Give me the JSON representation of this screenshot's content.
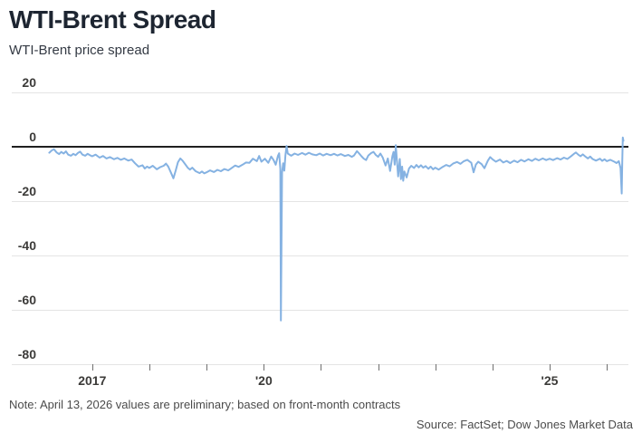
{
  "header": {
    "title": "WTI-Brent Spread",
    "subtitle": "WTI-Brent price spread"
  },
  "footer": {
    "note": "Note: April 13, 2026 values are preliminary; based on front-month contracts",
    "source": "Source: FactSet; Dow Jones Market Data"
  },
  "colors": {
    "line": "#85b2e2",
    "zero_line": "#1f1f1f",
    "gridline": "#e4e4e4",
    "tick_mark": "#6f6f6f",
    "axis_label": "#3c3b39",
    "title": "#1d2531",
    "footnote": "#4b4b4b"
  },
  "chart_data": {
    "type": "line",
    "title": "WTI-Brent Spread",
    "subtitle": "WTI-Brent price spread",
    "xlabel": "",
    "ylabel": "",
    "ylim": [
      -80,
      20
    ],
    "xlim": [
      2016.25,
      2026.35
    ],
    "grid": "horizontal",
    "legend": "none",
    "yticks": [
      20,
      0,
      -20,
      -40,
      -60,
      -80
    ],
    "xticks": [
      {
        "value": 2017,
        "label": "2017"
      },
      {
        "value": 2018,
        "label": ""
      },
      {
        "value": 2019,
        "label": ""
      },
      {
        "value": 2020,
        "label": "'20"
      },
      {
        "value": 2021,
        "label": ""
      },
      {
        "value": 2022,
        "label": ""
      },
      {
        "value": 2023,
        "label": ""
      },
      {
        "value": 2024,
        "label": ""
      },
      {
        "value": 2025,
        "label": "'25"
      },
      {
        "value": 2026,
        "label": ""
      }
    ],
    "series": [
      {
        "name": "WTI-Brent price spread",
        "points": [
          [
            2016.25,
            -2.2
          ],
          [
            2016.29,
            -1.4
          ],
          [
            2016.33,
            -0.9
          ],
          [
            2016.38,
            -2.1
          ],
          [
            2016.42,
            -2.7
          ],
          [
            2016.46,
            -1.9
          ],
          [
            2016.5,
            -2.5
          ],
          [
            2016.54,
            -1.7
          ],
          [
            2016.58,
            -2.9
          ],
          [
            2016.63,
            -3.3
          ],
          [
            2016.67,
            -2.6
          ],
          [
            2016.71,
            -3.1
          ],
          [
            2016.75,
            -2.3
          ],
          [
            2016.79,
            -1.8
          ],
          [
            2016.83,
            -2.9
          ],
          [
            2016.88,
            -3.3
          ],
          [
            2016.92,
            -2.6
          ],
          [
            2016.96,
            -3.1
          ],
          [
            2017.0,
            -3.5
          ],
          [
            2017.06,
            -2.9
          ],
          [
            2017.13,
            -4.0
          ],
          [
            2017.19,
            -3.4
          ],
          [
            2017.25,
            -4.3
          ],
          [
            2017.31,
            -3.8
          ],
          [
            2017.38,
            -4.6
          ],
          [
            2017.44,
            -4.1
          ],
          [
            2017.5,
            -4.8
          ],
          [
            2017.56,
            -4.3
          ],
          [
            2017.63,
            -5.1
          ],
          [
            2017.69,
            -4.7
          ],
          [
            2017.75,
            -6.1
          ],
          [
            2017.81,
            -7.3
          ],
          [
            2017.88,
            -6.8
          ],
          [
            2017.92,
            -8.0
          ],
          [
            2017.96,
            -7.3
          ],
          [
            2018.0,
            -7.8
          ],
          [
            2018.06,
            -7.0
          ],
          [
            2018.13,
            -8.3
          ],
          [
            2018.19,
            -7.5
          ],
          [
            2018.25,
            -7.0
          ],
          [
            2018.29,
            -6.2
          ],
          [
            2018.33,
            -7.3
          ],
          [
            2018.38,
            -9.6
          ],
          [
            2018.42,
            -11.6
          ],
          [
            2018.46,
            -8.8
          ],
          [
            2018.5,
            -5.7
          ],
          [
            2018.54,
            -4.3
          ],
          [
            2018.58,
            -5.1
          ],
          [
            2018.63,
            -6.5
          ],
          [
            2018.67,
            -7.7
          ],
          [
            2018.71,
            -8.4
          ],
          [
            2018.75,
            -7.7
          ],
          [
            2018.81,
            -9.0
          ],
          [
            2018.88,
            -9.7
          ],
          [
            2018.92,
            -9.1
          ],
          [
            2018.96,
            -9.8
          ],
          [
            2019.0,
            -9.4
          ],
          [
            2019.06,
            -8.7
          ],
          [
            2019.13,
            -9.3
          ],
          [
            2019.19,
            -8.5
          ],
          [
            2019.25,
            -9.0
          ],
          [
            2019.31,
            -8.2
          ],
          [
            2019.38,
            -8.7
          ],
          [
            2019.44,
            -7.8
          ],
          [
            2019.5,
            -6.9
          ],
          [
            2019.56,
            -7.4
          ],
          [
            2019.63,
            -6.6
          ],
          [
            2019.69,
            -5.8
          ],
          [
            2019.75,
            -5.9
          ],
          [
            2019.81,
            -4.4
          ],
          [
            2019.88,
            -5.3
          ],
          [
            2019.92,
            -3.4
          ],
          [
            2019.96,
            -5.5
          ],
          [
            2020.02,
            -4.4
          ],
          [
            2020.08,
            -5.9
          ],
          [
            2020.13,
            -3.6
          ],
          [
            2020.17,
            -4.8
          ],
          [
            2020.21,
            -6.6
          ],
          [
            2020.25,
            -3.3
          ],
          [
            2020.27,
            -2.4
          ],
          [
            2020.29,
            -8.2
          ],
          [
            2020.3,
            -63.9
          ],
          [
            2020.32,
            -9.6
          ],
          [
            2020.34,
            -6.1
          ],
          [
            2020.36,
            -8.8
          ],
          [
            2020.38,
            -3.2
          ],
          [
            2020.4,
            0.3
          ],
          [
            2020.42,
            -2.5
          ],
          [
            2020.48,
            -3.3
          ],
          [
            2020.54,
            -2.5
          ],
          [
            2020.6,
            -3.0
          ],
          [
            2020.67,
            -2.3
          ],
          [
            2020.73,
            -2.9
          ],
          [
            2020.79,
            -2.2
          ],
          [
            2020.85,
            -2.8
          ],
          [
            2020.92,
            -3.1
          ],
          [
            2020.98,
            -2.5
          ],
          [
            2021.04,
            -3.2
          ],
          [
            2021.1,
            -2.6
          ],
          [
            2021.17,
            -3.1
          ],
          [
            2021.23,
            -2.6
          ],
          [
            2021.29,
            -3.2
          ],
          [
            2021.35,
            -2.7
          ],
          [
            2021.42,
            -3.4
          ],
          [
            2021.48,
            -3.0
          ],
          [
            2021.54,
            -3.7
          ],
          [
            2021.58,
            -3.2
          ],
          [
            2021.63,
            -1.6
          ],
          [
            2021.67,
            -2.5
          ],
          [
            2021.71,
            -3.5
          ],
          [
            2021.75,
            -4.4
          ],
          [
            2021.79,
            -4.9
          ],
          [
            2021.83,
            -3.2
          ],
          [
            2021.88,
            -2.3
          ],
          [
            2021.92,
            -1.9
          ],
          [
            2021.96,
            -3.0
          ],
          [
            2022.0,
            -3.7
          ],
          [
            2022.04,
            -2.5
          ],
          [
            2022.08,
            -3.9
          ],
          [
            2022.13,
            -6.9
          ],
          [
            2022.17,
            -4.3
          ],
          [
            2022.21,
            -8.9
          ],
          [
            2022.25,
            -3.5
          ],
          [
            2022.27,
            -1.9
          ],
          [
            2022.29,
            -6.6
          ],
          [
            2022.31,
            0.6
          ],
          [
            2022.33,
            -5.3
          ],
          [
            2022.35,
            -10.9
          ],
          [
            2022.38,
            -4.5
          ],
          [
            2022.4,
            -11.9
          ],
          [
            2022.42,
            -7.3
          ],
          [
            2022.44,
            -12.5
          ],
          [
            2022.46,
            -9.1
          ],
          [
            2022.5,
            -11.3
          ],
          [
            2022.54,
            -8.0
          ],
          [
            2022.58,
            -7.0
          ],
          [
            2022.63,
            -7.8
          ],
          [
            2022.67,
            -6.7
          ],
          [
            2022.71,
            -7.6
          ],
          [
            2022.75,
            -6.8
          ],
          [
            2022.79,
            -7.7
          ],
          [
            2022.83,
            -7.1
          ],
          [
            2022.88,
            -8.1
          ],
          [
            2022.92,
            -7.3
          ],
          [
            2022.96,
            -8.3
          ],
          [
            2023.0,
            -7.7
          ],
          [
            2023.06,
            -8.4
          ],
          [
            2023.13,
            -7.4
          ],
          [
            2023.19,
            -6.7
          ],
          [
            2023.25,
            -7.2
          ],
          [
            2023.31,
            -6.2
          ],
          [
            2023.38,
            -5.6
          ],
          [
            2023.44,
            -6.3
          ],
          [
            2023.5,
            -5.3
          ],
          [
            2023.56,
            -4.8
          ],
          [
            2023.63,
            -5.9
          ],
          [
            2023.67,
            -9.4
          ],
          [
            2023.71,
            -6.6
          ],
          [
            2023.75,
            -5.5
          ],
          [
            2023.81,
            -6.4
          ],
          [
            2023.86,
            -7.9
          ],
          [
            2023.92,
            -5.1
          ],
          [
            2023.96,
            -3.8
          ],
          [
            2024.0,
            -4.6
          ],
          [
            2024.06,
            -5.5
          ],
          [
            2024.13,
            -4.7
          ],
          [
            2024.19,
            -5.8
          ],
          [
            2024.25,
            -5.2
          ],
          [
            2024.31,
            -6.0
          ],
          [
            2024.38,
            -5.1
          ],
          [
            2024.44,
            -5.7
          ],
          [
            2024.5,
            -4.8
          ],
          [
            2024.56,
            -5.4
          ],
          [
            2024.63,
            -4.6
          ],
          [
            2024.69,
            -5.2
          ],
          [
            2024.75,
            -4.4
          ],
          [
            2024.81,
            -5.0
          ],
          [
            2024.88,
            -4.3
          ],
          [
            2024.94,
            -4.9
          ],
          [
            2025.0,
            -4.4
          ],
          [
            2025.06,
            -4.9
          ],
          [
            2025.13,
            -4.2
          ],
          [
            2025.19,
            -4.7
          ],
          [
            2025.25,
            -4.0
          ],
          [
            2025.31,
            -4.5
          ],
          [
            2025.38,
            -3.4
          ],
          [
            2025.42,
            -2.7
          ],
          [
            2025.46,
            -2.1
          ],
          [
            2025.5,
            -2.9
          ],
          [
            2025.54,
            -3.5
          ],
          [
            2025.58,
            -2.8
          ],
          [
            2025.63,
            -3.7
          ],
          [
            2025.67,
            -4.3
          ],
          [
            2025.71,
            -3.6
          ],
          [
            2025.75,
            -4.5
          ],
          [
            2025.81,
            -5.1
          ],
          [
            2025.88,
            -4.4
          ],
          [
            2025.92,
            -5.2
          ],
          [
            2025.96,
            -4.6
          ],
          [
            2026.0,
            -5.3
          ],
          [
            2026.06,
            -4.8
          ],
          [
            2026.13,
            -5.5
          ],
          [
            2026.17,
            -6.0
          ],
          [
            2026.21,
            -5.3
          ],
          [
            2026.24,
            -7.8
          ],
          [
            2026.26,
            -17.2
          ],
          [
            2026.27,
            -5.5
          ],
          [
            2026.28,
            3.4
          ],
          [
            2026.29,
            2.2
          ]
        ]
      }
    ]
  }
}
